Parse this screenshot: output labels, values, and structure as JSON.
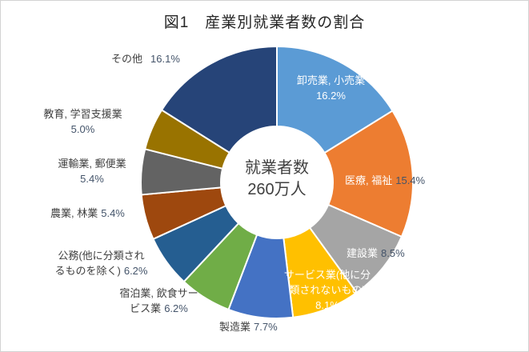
{
  "chart": {
    "title": "図1　産業別就業者数の割合",
    "center_label": {
      "line1": "就業者数",
      "line2": "260万人"
    }
  },
  "chart_data": {
    "type": "pie",
    "subtype": "donut",
    "title": "図1　産業別就業者数の割合",
    "center_text": "就業者数 260万人",
    "unit": "%",
    "start_angle_deg": 0,
    "direction": "clockwise",
    "legend": "none",
    "slices": [
      {
        "name": "卸売業, 小売業",
        "value": 16.2,
        "pct_label": "16.2%",
        "color": "#5B9BD5"
      },
      {
        "name": "医療, 福祉",
        "value": 15.4,
        "pct_label": "15.4%",
        "color": "#ED7D31"
      },
      {
        "name": "建設業",
        "value": 8.5,
        "pct_label": "8.5%",
        "color": "#A5A5A5"
      },
      {
        "name": "サービス業(他に分類されないもの)",
        "name_lines": [
          "サービス業(他に分",
          "類されないもの)"
        ],
        "value": 8.1,
        "pct_label": "8.1%",
        "color": "#FFC000"
      },
      {
        "name": "製造業",
        "value": 7.7,
        "pct_label": "7.7%",
        "color": "#4472C4"
      },
      {
        "name": "宿泊業, 飲食サービス業",
        "name_lines": [
          "宿泊業, 飲食サー",
          "ビス業"
        ],
        "value": 6.2,
        "pct_label": "6.2%",
        "color": "#70AD47"
      },
      {
        "name": "公務(他に分類されるものを除く)",
        "name_lines": [
          "公務(他に分類され",
          "るものを除く)"
        ],
        "value": 6.2,
        "pct_label": "6.2%",
        "color": "#255E91"
      },
      {
        "name": "農業, 林業",
        "value": 5.4,
        "pct_label": "5.4%",
        "color": "#9E480E"
      },
      {
        "name": "運輸業, 郵便業",
        "value": 5.4,
        "pct_label": "5.4%",
        "color": "#636363"
      },
      {
        "name": "教育, 学習支援業",
        "value": 5.0,
        "pct_label": "5.0%",
        "color": "#997300"
      },
      {
        "name": "その他",
        "value": 16.1,
        "pct_label": "16.1%",
        "color": "#264478"
      }
    ]
  }
}
